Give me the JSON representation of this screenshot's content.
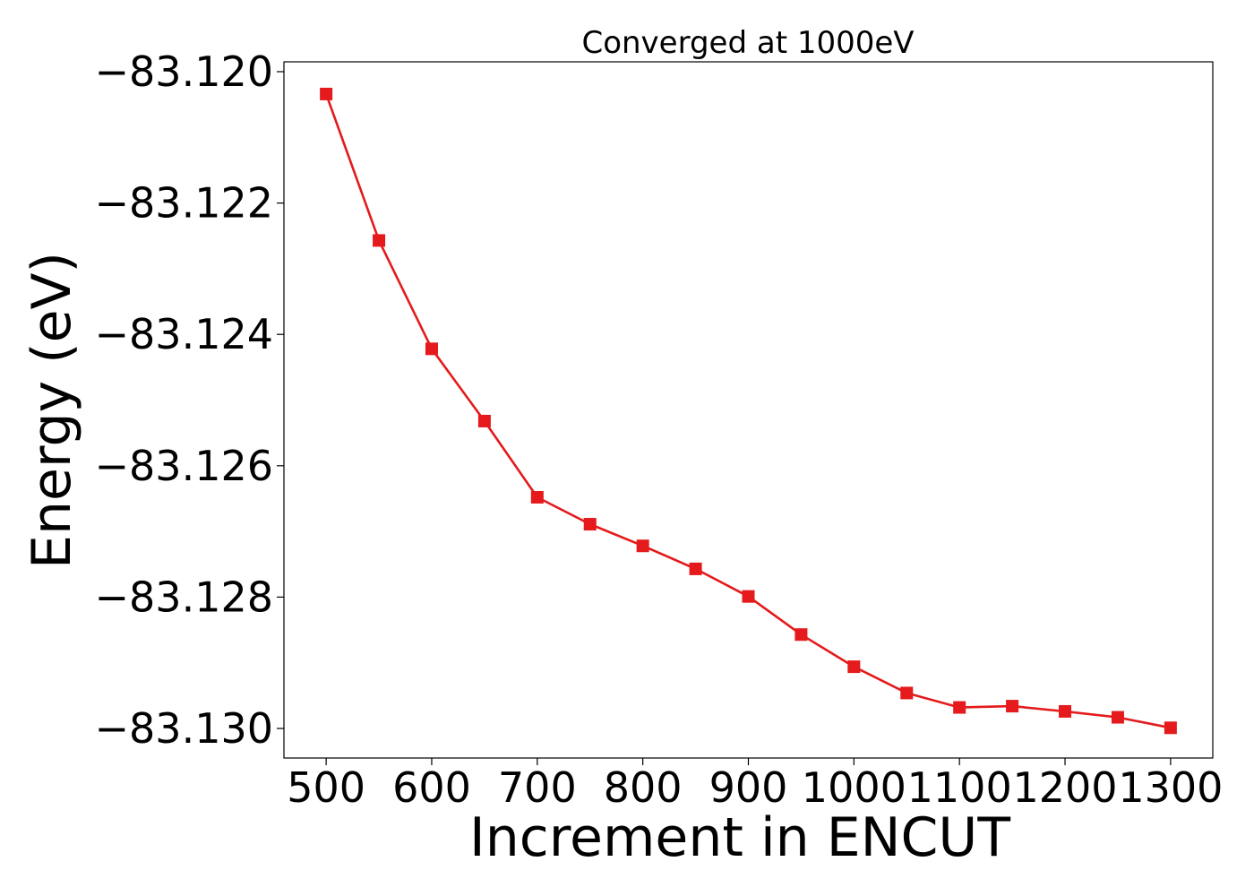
{
  "chart_data": {
    "type": "line",
    "title": "Converged at 1000eV",
    "xlabel": "Increment in ENCUT",
    "ylabel": "Energy (eV)",
    "xlim": [
      460,
      1340
    ],
    "ylim": [
      -83.13045,
      -83.11985
    ],
    "xticks": [
      500,
      600,
      700,
      800,
      900,
      1000,
      1100,
      1200,
      1300
    ],
    "yticks": [
      -83.12,
      -83.122,
      -83.124,
      -83.126,
      -83.128,
      -83.13
    ],
    "ytick_labels": [
      "−83.120",
      "−83.122",
      "−83.124",
      "−83.126",
      "−83.128",
      "−83.130"
    ],
    "grid": false,
    "marker": "square",
    "series": [
      {
        "color": "#e41a1c",
        "x": [
          500,
          550,
          600,
          650,
          700,
          750,
          800,
          850,
          900,
          950,
          1000,
          1050,
          1100,
          1150,
          1200,
          1250,
          1300
        ],
        "y": [
          -83.12034,
          -83.12257,
          -83.12422,
          -83.12532,
          -83.12648,
          -83.12689,
          -83.12722,
          -83.12757,
          -83.12799,
          -83.12857,
          -83.12906,
          -83.12946,
          -83.12968,
          -83.12966,
          -83.12974,
          -83.12983,
          -83.12999
        ]
      }
    ]
  }
}
